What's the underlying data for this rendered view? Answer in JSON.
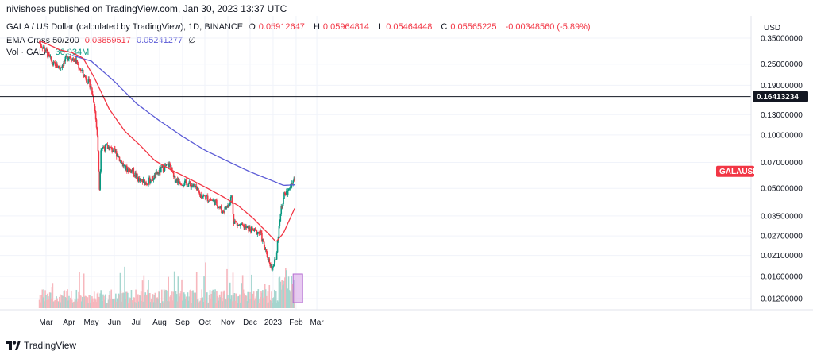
{
  "header": {
    "publish_line": "nivishoes published on TradingView.com, Jan 30, 2023 13:37 UTC"
  },
  "legend": {
    "symbol": "GALA / US Dollar (calculated by TradingView), 1D, BINANCE",
    "open_label": "O",
    "open": "0.05912647",
    "high_label": "H",
    "high": "0.05964814",
    "low_label": "L",
    "low": "0.05464448",
    "close_label": "C",
    "close": "0.05565225",
    "change": "-0.00348560 (-5.89%)",
    "ema_label": "EMA Cross 50/200",
    "ema50": "0.03859517",
    "ema200": "0.05241277",
    "ema_suffix": "∅",
    "vol_label": "Vol · GALA",
    "vol_value": "36.934M"
  },
  "footer": {
    "brand": "TradingView"
  },
  "colors": {
    "up": "#089981",
    "down": "#f23645",
    "ema50": "#f23645",
    "ema200": "#5b5bd6",
    "price_tag": "#f23645",
    "highlight": "#d9a8e8"
  },
  "chart_data": {
    "type": "candlestick",
    "title": "GALA / US Dollar",
    "y_axis_unit": "USD",
    "y_scale": "log",
    "y_ticks": [
      "0.35000000",
      "0.25000000",
      "0.19000000",
      "0.13000000",
      "0.10000000",
      "0.07000000",
      "0.05000000",
      "0.03500000",
      "0.02700000",
      "0.02100000",
      "0.01600000",
      "0.01200000"
    ],
    "x_ticks": [
      "Mar",
      "Apr",
      "May",
      "Jun",
      "Jul",
      "Aug",
      "Sep",
      "Oct",
      "Nov",
      "Dec",
      "2023",
      "Feb",
      "Mar"
    ],
    "horizontal_line": {
      "value": "0.16413234"
    },
    "last_price_label": "GALAUSD",
    "price_path": [
      [
        "Feb 20",
        0.33
      ],
      [
        "Feb 28",
        0.3
      ],
      [
        "Mar 10",
        0.25
      ],
      [
        "Mar 20",
        0.24
      ],
      [
        "Apr 01",
        0.28
      ],
      [
        "Apr 10",
        0.26
      ],
      [
        "Apr 20",
        0.22
      ],
      [
        "Apr 30",
        0.19
      ],
      [
        "May 05",
        0.15
      ],
      [
        "May 09",
        0.1
      ],
      [
        "May 12",
        0.05
      ],
      [
        "May 14",
        0.085
      ],
      [
        "May 25",
        0.085
      ],
      [
        "Jun 05",
        0.078
      ],
      [
        "Jun 15",
        0.065
      ],
      [
        "Jun 25",
        0.063
      ],
      [
        "Jul 05",
        0.055
      ],
      [
        "Jul 15",
        0.054
      ],
      [
        "Jul 25",
        0.058
      ],
      [
        "Aug 05",
        0.065
      ],
      [
        "Aug 15",
        0.068
      ],
      [
        "Aug 20",
        0.057
      ],
      [
        "Sep 01",
        0.054
      ],
      [
        "Sep 15",
        0.052
      ],
      [
        "Sep 25",
        0.046
      ],
      [
        "Oct 05",
        0.044
      ],
      [
        "Oct 15",
        0.042
      ],
      [
        "Oct 25",
        0.037
      ],
      [
        "Nov 01",
        0.04
      ],
      [
        "Nov 06",
        0.045
      ],
      [
        "Nov 09",
        0.033
      ],
      [
        "Nov 15",
        0.031
      ],
      [
        "Nov 25",
        0.03
      ],
      [
        "Dec 05",
        0.029
      ],
      [
        "Dec 15",
        0.028
      ],
      [
        "Dec 22",
        0.022
      ],
      [
        "Dec 30",
        0.018
      ],
      [
        "Jan 05",
        0.02
      ],
      [
        "Jan 10",
        0.034
      ],
      [
        "Jan 15",
        0.045
      ],
      [
        "Jan 20",
        0.048
      ],
      [
        "Jan 25",
        0.052
      ],
      [
        "Jan 30",
        0.0557
      ]
    ],
    "ema50": [
      [
        "Feb 20",
        0.34
      ],
      [
        "Mar 20",
        0.3
      ],
      [
        "Apr 05",
        0.29
      ],
      [
        "Apr 20",
        0.27
      ],
      [
        "May 05",
        0.21
      ],
      [
        "May 25",
        0.14
      ],
      [
        "Jun 15",
        0.105
      ],
      [
        "Jul 05",
        0.088
      ],
      [
        "Jul 25",
        0.072
      ],
      [
        "Aug 15",
        0.064
      ],
      [
        "Sep 05",
        0.058
      ],
      [
        "Oct 01",
        0.051
      ],
      [
        "Oct 25",
        0.045
      ],
      [
        "Nov 15",
        0.04
      ],
      [
        "Dec 05",
        0.034
      ],
      [
        "Dec 25",
        0.028
      ],
      [
        "Jan 05",
        0.025
      ],
      [
        "Jan 15",
        0.028
      ],
      [
        "Jan 30",
        0.0386
      ]
    ],
    "ema200": [
      [
        "Apr 05",
        0.28
      ],
      [
        "May 01",
        0.26
      ],
      [
        "Jun 01",
        0.2
      ],
      [
        "Jul 01",
        0.15
      ],
      [
        "Aug 01",
        0.12
      ],
      [
        "Sep 01",
        0.098
      ],
      [
        "Oct 01",
        0.082
      ],
      [
        "Nov 01",
        0.071
      ],
      [
        "Dec 01",
        0.062
      ],
      [
        "Jan 01",
        0.055
      ],
      [
        "Jan 15",
        0.052
      ],
      [
        "Jan 30",
        0.0524
      ]
    ]
  }
}
